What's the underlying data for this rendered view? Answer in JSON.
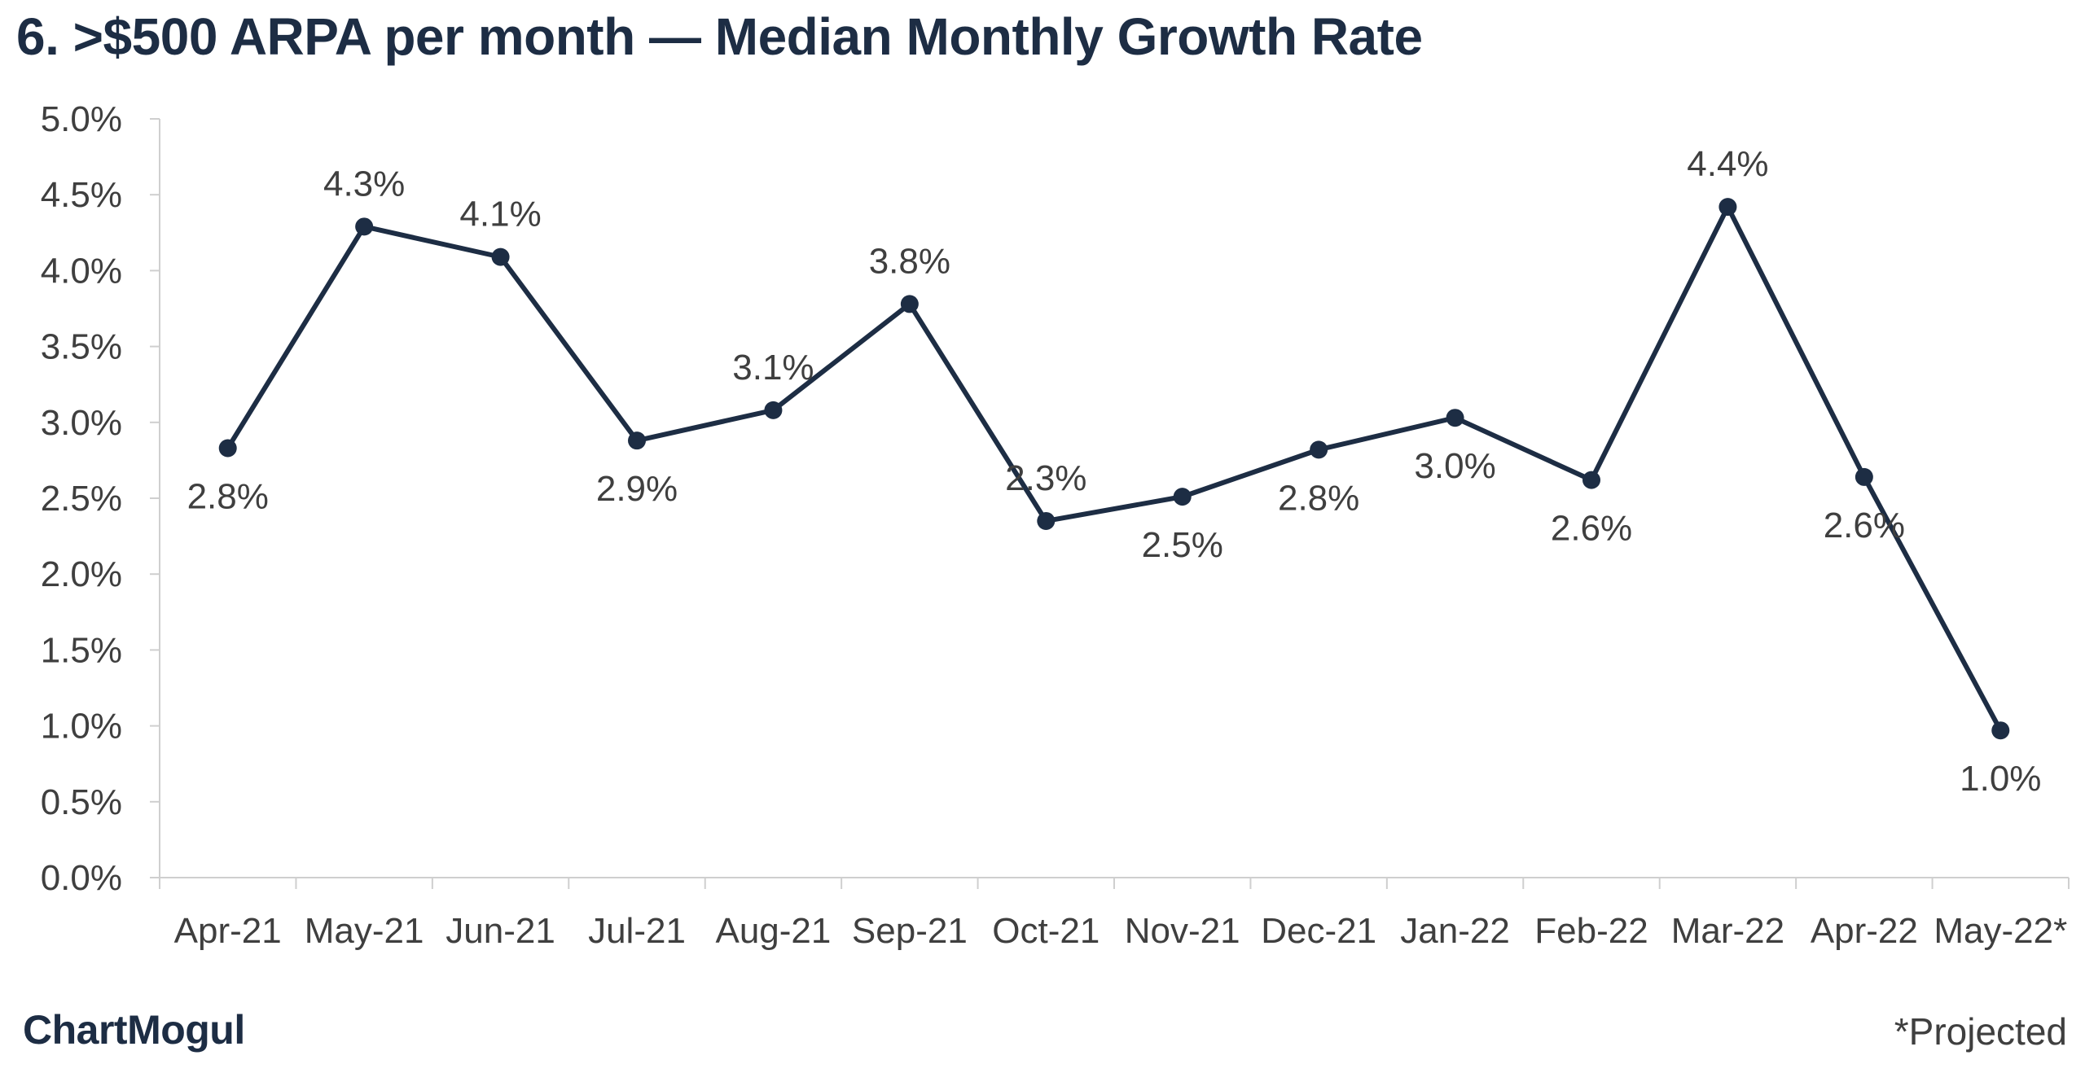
{
  "title": "6. >$500 ARPA per month — Median Monthly Growth Rate",
  "brand": "ChartMogul",
  "footnote": "*Projected",
  "colors": {
    "line": "#1d2d44",
    "text": "#3f3f3f",
    "title": "#1d2d44",
    "axis": "#cfcfcf"
  },
  "chart_data": {
    "type": "line",
    "categories": [
      "Apr-21",
      "May-21",
      "Jun-21",
      "Jul-21",
      "Aug-21",
      "Sep-21",
      "Oct-21",
      "Nov-21",
      "Dec-21",
      "Jan-22",
      "Feb-22",
      "Mar-22",
      "Apr-22",
      "May-22*"
    ],
    "series": [
      {
        "values": [
          2.83,
          4.29,
          4.09,
          2.88,
          3.08,
          3.78,
          2.35,
          2.51,
          2.82,
          3.03,
          2.62,
          4.42,
          2.64,
          0.97
        ],
        "labels": [
          "2.8%",
          "4.3%",
          "4.1%",
          "2.9%",
          "3.1%",
          "3.8%",
          "2.3%",
          "2.5%",
          "2.8%",
          "3.0%",
          "2.6%",
          "4.4%",
          "2.6%",
          "1.0%"
        ],
        "label_positions": [
          "below",
          "above",
          "above",
          "below",
          "above",
          "above",
          "above",
          "below",
          "below",
          "below",
          "below",
          "above",
          "below",
          "below"
        ]
      }
    ],
    "yticks": [
      "0.0%",
      "0.5%",
      "1.0%",
      "1.5%",
      "2.0%",
      "2.5%",
      "3.0%",
      "3.5%",
      "4.0%",
      "4.5%",
      "5.0%"
    ],
    "ylim": [
      0,
      5
    ],
    "grid": false,
    "legend": "none"
  }
}
